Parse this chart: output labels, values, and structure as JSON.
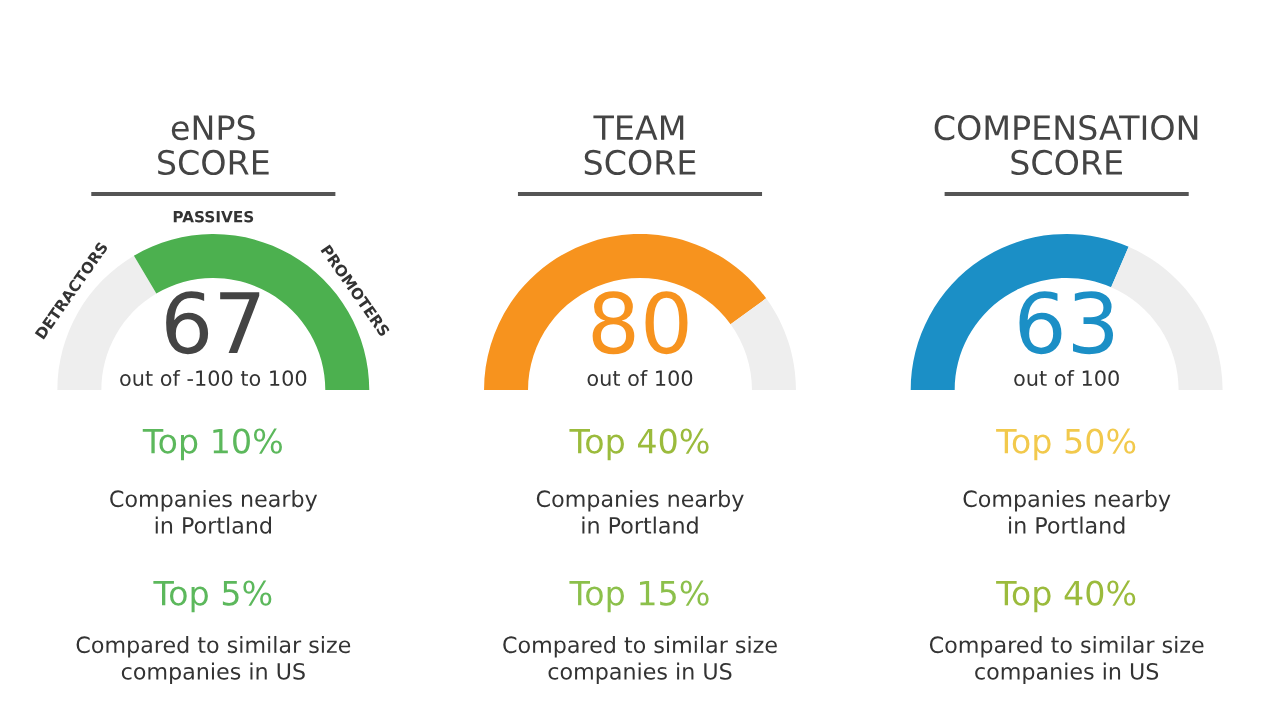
{
  "chart_data": [
    {
      "type": "donut",
      "title": "eNPS\nSCORE",
      "categories": [
        null,
        null
      ],
      "values": [
        33,
        67
      ],
      "colors": [
        "#eeeeee",
        "#4cb04f"
      ],
      "value_labels": [
        null,
        "67"
      ],
      "annotations": [
        "out of -100 to 100",
        "Top 10%",
        "Companies nearby\nin Portland",
        "Top 5%",
        "Compared to similar size\ncompanies in US",
        "DETRACTORS",
        "PASSIVES",
        "PROMOTERS"
      ]
    },
    {
      "type": "donut",
      "title": "TEAM\nSCORE",
      "categories": [
        null,
        null
      ],
      "values": [
        80,
        20
      ],
      "colors": [
        "#f7931e",
        "#eeeeee"
      ],
      "value_labels": [
        "80",
        null
      ],
      "annotations": [
        "out of 100",
        "Top 40%",
        "Companies nearby\nin Portland",
        "Top 15%",
        "Compared to similar size\ncompanies in US"
      ]
    },
    {
      "type": "donut",
      "title": "COMPENSATION\nSCORE",
      "categories": [
        null,
        null
      ],
      "values": [
        63,
        37
      ],
      "colors": [
        "#1b8fc6",
        "#eeeeee"
      ],
      "value_labels": [
        "63",
        null
      ],
      "annotations": [
        "out of 100",
        "Top 50%",
        "Companies nearby\nin Portland",
        "Top 40%",
        "Compared to similar size\ncompanies in US"
      ]
    }
  ]
}
